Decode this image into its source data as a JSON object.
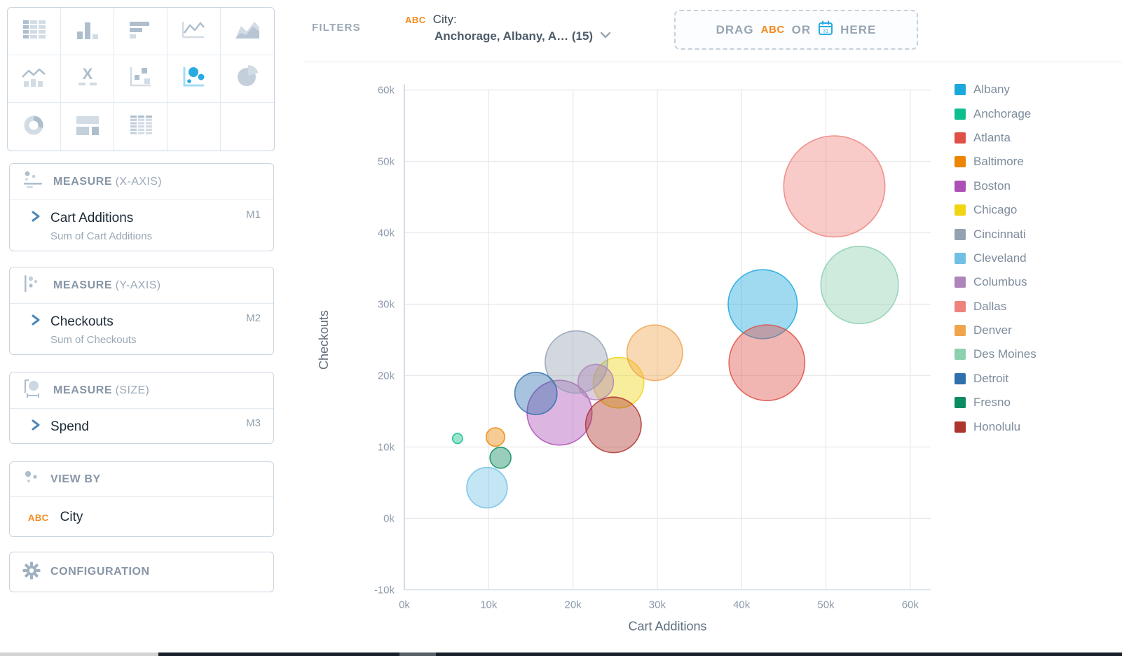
{
  "top_bar": {
    "filters_label": "FILTERS",
    "filter": {
      "type_badge": "ABC",
      "field": "City:",
      "selection": "Anchorage, Albany, A…  (15)"
    },
    "drop_zone": {
      "drag": "DRAG",
      "type_badge": "ABC",
      "or": "OR",
      "calendar_day": "31",
      "here": "HERE"
    }
  },
  "sidebar": {
    "chart_types": {
      "items": [
        "table",
        "bar-chart",
        "horizontal-bar-chart",
        "line-chart",
        "area-chart",
        "combo-chart",
        "kpi-x",
        "scatter-plot",
        "bubble-chart",
        "pie-chart",
        "donut-chart",
        "dashboard-layout",
        "pivot-table",
        "",
        ""
      ],
      "selected": "bubble-chart"
    },
    "measure_x": {
      "label": "MEASURE",
      "axis": "(X-AXIS)",
      "field": "Cart Additions",
      "badge": "M1",
      "summary": "Sum of Cart Additions"
    },
    "measure_y": {
      "label": "MEASURE",
      "axis": "(Y-AXIS)",
      "field": "Checkouts",
      "badge": "M2",
      "summary": "Sum of Checkouts"
    },
    "measure_size": {
      "label": "MEASURE",
      "axis": "(SIZE)",
      "field": "Spend",
      "badge": "M3"
    },
    "view_by": {
      "label": "VIEW BY",
      "type_badge": "ABC",
      "field": "City"
    },
    "configuration": {
      "label": "CONFIGURATION"
    }
  },
  "chart_data": {
    "type": "scatter",
    "subtype": "bubble",
    "xlabel": "Cart Additions",
    "ylabel": "Checkouts",
    "xlim": [
      0,
      60
    ],
    "ylim": [
      -10,
      60
    ],
    "unit": "k",
    "grid": true,
    "legend_position": "right",
    "x_ticks": [
      0,
      10,
      20,
      30,
      40,
      50,
      60
    ],
    "x_tick_labels": [
      "0k",
      "10k",
      "20k",
      "30k",
      "40k",
      "50k",
      "60k"
    ],
    "y_ticks": [
      60,
      50,
      40,
      30,
      20,
      10,
      0,
      -10
    ],
    "y_tick_labels": [
      "60k",
      "50k",
      "40k",
      "30k",
      "20k",
      "10k",
      "0k",
      "-10k"
    ],
    "series": [
      {
        "name": "Albany",
        "color": "#1CA8DD",
        "x": 42.5,
        "y": 30.0,
        "r": 4.1
      },
      {
        "name": "Anchorage",
        "color": "#0EBE8D",
        "x": 6.3,
        "y": 11.2,
        "r": 0.6
      },
      {
        "name": "Atlanta",
        "color": "#DF5047",
        "x": 43.0,
        "y": 21.8,
        "r": 4.5
      },
      {
        "name": "Baltimore",
        "color": "#EC8500",
        "x": 10.8,
        "y": 11.4,
        "r": 1.1
      },
      {
        "name": "Boston",
        "color": "#AC50B5",
        "x": 18.4,
        "y": 14.8,
        "r": 3.85
      },
      {
        "name": "Chicago",
        "color": "#EFD512",
        "x": 25.4,
        "y": 19.0,
        "r": 3.0
      },
      {
        "name": "Cincinnati",
        "color": "#93A2B1",
        "x": 20.4,
        "y": 21.9,
        "r": 3.7
      },
      {
        "name": "Cleveland",
        "color": "#70C0E4",
        "x": 9.8,
        "y": 4.3,
        "r": 2.4
      },
      {
        "name": "Columbus",
        "color": "#AE85B9",
        "x": 22.7,
        "y": 19.1,
        "r": 2.1
      },
      {
        "name": "Dallas",
        "color": "#EE837D",
        "x": 51.0,
        "y": 46.5,
        "r": 6.0
      },
      {
        "name": "Denver",
        "color": "#F0A54D",
        "x": 29.7,
        "y": 23.2,
        "r": 3.3
      },
      {
        "name": "Des Moines",
        "color": "#8DD0B0",
        "x": 54.0,
        "y": 32.7,
        "r": 4.6
      },
      {
        "name": "Detroit",
        "color": "#2F70AD",
        "x": 15.6,
        "y": 17.5,
        "r": 2.5
      },
      {
        "name": "Fresno",
        "color": "#0B8B60",
        "x": 11.4,
        "y": 8.5,
        "r": 1.25
      },
      {
        "name": "Honolulu",
        "color": "#AE342E",
        "x": 24.8,
        "y": 13.1,
        "r": 3.3
      }
    ]
  }
}
